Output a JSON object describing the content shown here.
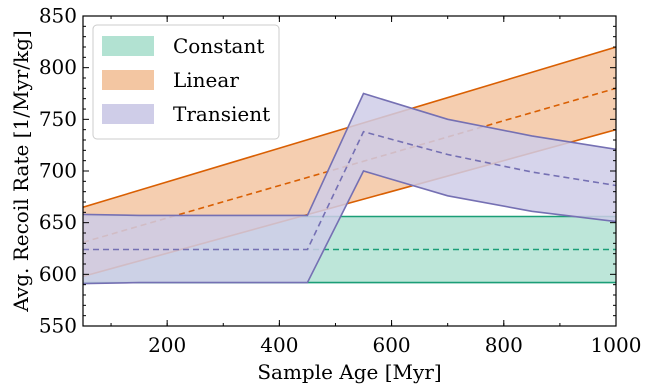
{
  "chart_data": {
    "type": "area",
    "xlabel": "Sample Age [Myr]",
    "ylabel": "Avg. Recoil Rate [1/Myr/kg]",
    "xlim": [
      50,
      1000
    ],
    "ylim": [
      550,
      850
    ],
    "xticks": [
      200,
      400,
      600,
      800,
      1000
    ],
    "yticks": [
      550,
      600,
      650,
      700,
      750,
      800,
      850
    ],
    "grid": false,
    "legend_position": "top-left",
    "series": [
      {
        "name": "Constant",
        "fill_color": "#b2e2d2",
        "line_color": "#1b9e77",
        "upper": {
          "x": [
            50,
            1000
          ],
          "y": [
            656,
            656
          ]
        },
        "mid": {
          "x": [
            50,
            1000
          ],
          "y": [
            624,
            624
          ]
        },
        "lower": {
          "x": [
            50,
            1000
          ],
          "y": [
            592,
            592
          ]
        }
      },
      {
        "name": "Linear",
        "fill_color": "#f3c6a2",
        "line_color": "#d95f02",
        "upper": {
          "x": [
            50,
            1000
          ],
          "y": [
            665,
            820
          ]
        },
        "mid": {
          "x": [
            50,
            1000
          ],
          "y": [
            631,
            780
          ]
        },
        "lower": {
          "x": [
            50,
            1000
          ],
          "y": [
            598,
            740
          ]
        }
      },
      {
        "name": "Transient",
        "fill_color": "#cfcde8",
        "line_color": "#7570b3",
        "upper": {
          "x": [
            50,
            150,
            450,
            550,
            700,
            850,
            1000
          ],
          "y": [
            658,
            657,
            657,
            775,
            750,
            734,
            721
          ]
        },
        "mid": {
          "x": [
            50,
            150,
            450,
            550,
            700,
            850,
            1000
          ],
          "y": [
            624,
            624,
            624,
            738,
            716,
            699,
            686
          ]
        },
        "lower": {
          "x": [
            50,
            150,
            450,
            550,
            700,
            850,
            1000
          ],
          "y": [
            591,
            592,
            592,
            700,
            676,
            661,
            651
          ]
        }
      }
    ]
  }
}
